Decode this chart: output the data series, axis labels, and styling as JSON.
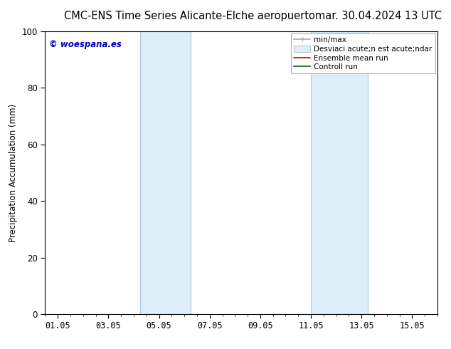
{
  "title_center": "CMC-ENS Time Series Alicante-Elche aeropuerto",
  "title_right": "mar. 30.04.2024 13 UTC",
  "ylabel": "Precipitation Accumulation (mm)",
  "xlim": [
    0.5,
    16.0
  ],
  "ylim": [
    0,
    100
  ],
  "yticks": [
    0,
    20,
    40,
    60,
    80,
    100
  ],
  "xticks": [
    1.0,
    3.0,
    5.0,
    7.0,
    9.0,
    11.0,
    13.0,
    15.0
  ],
  "xticklabels": [
    "01.05",
    "03.05",
    "05.05",
    "07.05",
    "09.05",
    "11.05",
    "13.05",
    "15.05"
  ],
  "shaded_bands": [
    {
      "x_start": 4.25,
      "x_end": 6.25,
      "color": "#ddeef8"
    },
    {
      "x_start": 11.0,
      "x_end": 13.25,
      "color": "#ddeef8"
    }
  ],
  "band_borders": [
    {
      "x": 4.25,
      "color": "#aaccdd"
    },
    {
      "x": 6.25,
      "color": "#aaccdd"
    },
    {
      "x": 11.0,
      "color": "#aaccdd"
    },
    {
      "x": 13.25,
      "color": "#aaccdd"
    }
  ],
  "legend_label_minmax": "min/max",
  "legend_label_std": "Desviaci acute;n est acute;ndar",
  "legend_label_ensemble": "Ensemble mean run",
  "legend_label_control": "Controll run",
  "minmax_color": "#aaaaaa",
  "std_color": "#ddeef8",
  "ensemble_color": "#cc0000",
  "control_color": "#006600",
  "watermark_text": "© woespana.es",
  "watermark_color": "#0000bb",
  "bg_color": "#ffffff",
  "title_fontsize": 10.5,
  "tick_fontsize": 8.5,
  "ylabel_fontsize": 8.5,
  "legend_fontsize": 7.5
}
